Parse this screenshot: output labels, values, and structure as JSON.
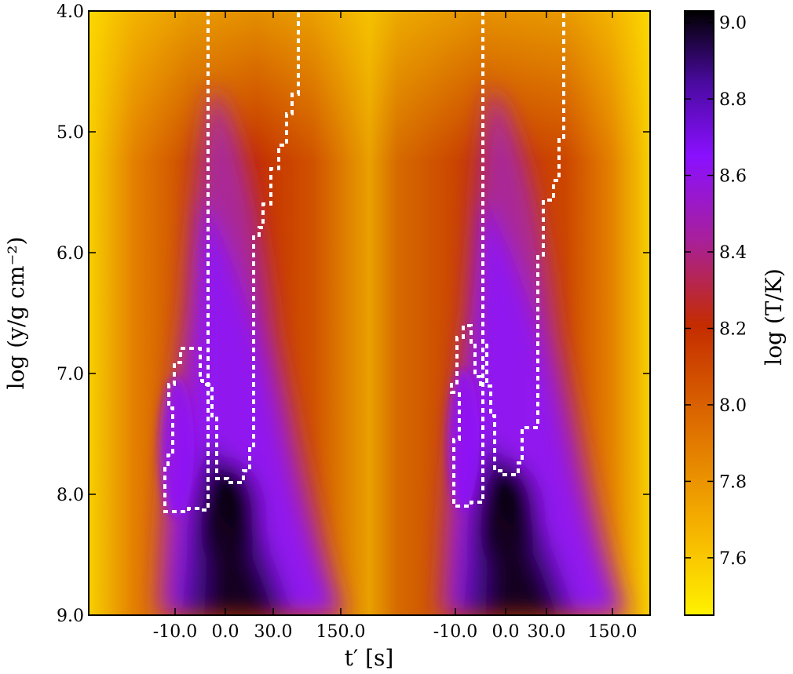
{
  "chart_data": {
    "type": "heatmap",
    "title": "",
    "xlabel": "t′ [s]",
    "ylabel": "log (y/g cm⁻²)",
    "x_tick_labels": [
      "-10.0",
      "0.0",
      "30.0",
      "150.0",
      "-10.0",
      "0.0",
      "30.0",
      "150.0"
    ],
    "y_ticks": [
      4.0,
      5.0,
      6.0,
      7.0,
      8.0,
      9.0
    ],
    "y_tick_labels": [
      "4.0",
      "5.0",
      "6.0",
      "7.0",
      "8.0",
      "9.0"
    ],
    "ylim": [
      4.0,
      9.0
    ],
    "y_inverted": true,
    "colorbar": {
      "label": "log (T/K)",
      "range": [
        7.45,
        9.03
      ],
      "ticks": [
        7.6,
        7.8,
        8.0,
        8.2,
        8.4,
        8.6,
        8.8,
        9.0
      ],
      "tick_labels": [
        "7.6",
        "7.8",
        "8.0",
        "8.2",
        "8.4",
        "8.6",
        "8.8",
        "9.0"
      ],
      "colormap": "gnuplot-like (black → purple → violet → red → orange → yellow)"
    },
    "contour_style": "white dotted line"
  },
  "colors": {
    "cmap_hot_end": "#fff200",
    "cmap_cold_end": "#000000",
    "contour": "#ffffff"
  }
}
